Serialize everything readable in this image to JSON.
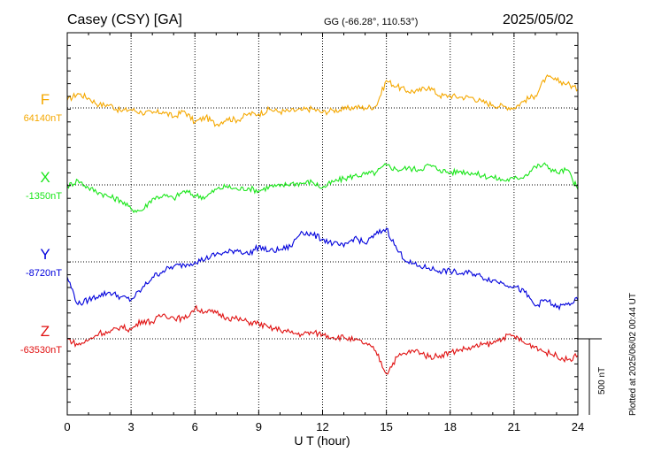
{
  "chart_data": {
    "type": "line",
    "title": "Casey (CSY)  [GA]",
    "subtitle": "GG (-66.28°, 110.53°)",
    "date": "2025/05/02",
    "xlabel": "U T (hour)",
    "xlim": [
      0,
      24
    ],
    "x_ticks": [
      "0",
      "3",
      "6",
      "9",
      "12",
      "15",
      "18",
      "21",
      "24"
    ],
    "grid": true,
    "scale_bar": "500 nT",
    "footer": "Plotted at 2025/06/02 00:44 UT",
    "series": [
      {
        "name": "F",
        "baseline_label": "64140nT",
        "color": "#f5a800",
        "x": [
          0,
          0.5,
          1,
          1.5,
          2,
          2.5,
          3,
          3.5,
          4,
          4.5,
          5,
          5.5,
          6,
          6.5,
          7,
          7.5,
          8,
          8.5,
          9,
          9.5,
          10,
          10.5,
          11,
          11.5,
          12,
          12.5,
          13,
          13.5,
          14,
          14.5,
          15,
          15.5,
          16,
          16.5,
          17,
          17.5,
          18,
          18.5,
          19,
          19.5,
          20,
          20.5,
          21,
          21.5,
          22,
          22.5,
          23,
          23.5,
          24
        ],
        "values": [
          50,
          95,
          65,
          20,
          20,
          -20,
          -10,
          -30,
          -35,
          -25,
          -60,
          -20,
          -95,
          -60,
          -110,
          -70,
          -80,
          -40,
          -40,
          -10,
          -25,
          -20,
          -15,
          -5,
          -30,
          -15,
          -10,
          5,
          0,
          10,
          180,
          140,
          110,
          110,
          140,
          80,
          80,
          70,
          70,
          40,
          20,
          10,
          0,
          50,
          80,
          200,
          180,
          160,
          120
        ]
      },
      {
        "name": "X",
        "baseline_label": "-1350nT",
        "color": "#19e619",
        "x": [
          0,
          0.5,
          1,
          1.5,
          2,
          2.5,
          3,
          3.5,
          4,
          4.5,
          5,
          5.5,
          6,
          6.5,
          7,
          7.5,
          8,
          8.5,
          9,
          9.5,
          10,
          10.5,
          11,
          11.5,
          12,
          12.5,
          13,
          13.5,
          14,
          14.5,
          15,
          15.5,
          16,
          16.5,
          17,
          17.5,
          18,
          18.5,
          19,
          19.5,
          20,
          20.5,
          21,
          21.5,
          22,
          22.5,
          23,
          23.5,
          24
        ],
        "values": [
          -10,
          30,
          -20,
          -50,
          -80,
          -100,
          -160,
          -170,
          -90,
          -70,
          -90,
          -40,
          -70,
          -80,
          -30,
          -10,
          -30,
          -20,
          -40,
          -10,
          -10,
          10,
          10,
          20,
          -20,
          20,
          40,
          60,
          70,
          80,
          130,
          100,
          110,
          100,
          130,
          100,
          80,
          90,
          80,
          60,
          50,
          30,
          40,
          60,
          120,
          130,
          80,
          100,
          -30
        ]
      },
      {
        "name": "Y",
        "baseline_label": "-8720nT",
        "color": "#0000dc",
        "x": [
          0,
          0.5,
          1,
          1.5,
          2,
          2.5,
          3,
          3.5,
          4,
          4.5,
          5,
          5.5,
          6,
          6.5,
          7,
          7.5,
          8,
          8.5,
          9,
          9.5,
          10,
          10.5,
          11,
          11.5,
          12,
          12.5,
          13,
          13.5,
          14,
          14.5,
          15,
          15.5,
          16,
          16.5,
          17,
          17.5,
          18,
          18.5,
          19,
          19.5,
          20,
          20.5,
          21,
          21.5,
          22,
          22.5,
          23,
          23.5,
          24
        ],
        "values": [
          -100,
          -280,
          -250,
          -220,
          -200,
          -230,
          -250,
          -180,
          -100,
          -60,
          -30,
          -20,
          0,
          20,
          50,
          60,
          80,
          50,
          100,
          70,
          80,
          100,
          200,
          180,
          150,
          120,
          100,
          160,
          120,
          180,
          220,
          80,
          0,
          -30,
          -40,
          -60,
          -60,
          -80,
          -70,
          -100,
          -120,
          -140,
          -160,
          -200,
          -290,
          -250,
          -300,
          -280,
          -250
        ]
      },
      {
        "name": "Z",
        "baseline_label": "-63530nT",
        "color": "#e01010",
        "x": [
          0,
          0.5,
          1,
          1.5,
          2,
          2.5,
          3,
          3.5,
          4,
          4.5,
          5,
          5.5,
          6,
          6.5,
          7,
          7.5,
          8,
          8.5,
          9,
          9.5,
          10,
          10.5,
          11,
          11.5,
          12,
          12.5,
          13,
          13.5,
          14,
          14.5,
          15,
          15.5,
          16,
          16.5,
          17,
          17.5,
          18,
          18.5,
          19,
          19.5,
          20,
          20.5,
          21,
          21.5,
          22,
          22.5,
          23,
          23.5,
          24
        ],
        "values": [
          0,
          -40,
          -10,
          40,
          40,
          80,
          60,
          120,
          110,
          160,
          140,
          130,
          200,
          180,
          170,
          140,
          130,
          110,
          100,
          70,
          60,
          40,
          30,
          40,
          30,
          10,
          10,
          -10,
          -30,
          -80,
          -230,
          -120,
          -90,
          -80,
          -120,
          -110,
          -90,
          -70,
          -60,
          -40,
          -30,
          10,
          20,
          -30,
          -50,
          -90,
          -110,
          -140,
          -110
        ]
      }
    ]
  }
}
